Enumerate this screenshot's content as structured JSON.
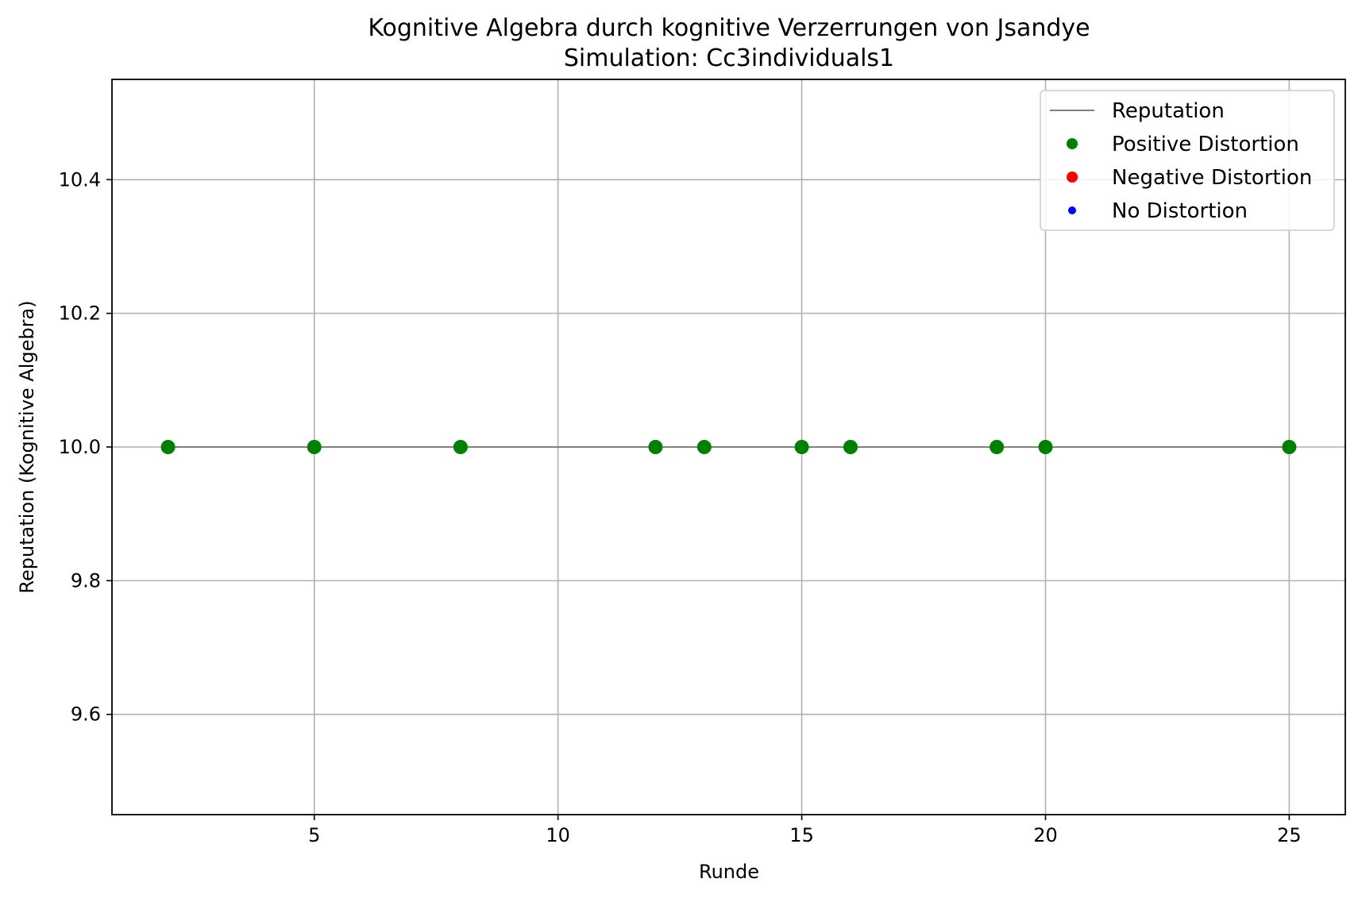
{
  "chart_data": {
    "type": "scatter",
    "title": "Kognitive Algebra durch kognitive Verzerrungen von Jsandye",
    "subtitle": "Simulation: Cc3individuals1",
    "xlabel": "Runde",
    "ylabel": "Reputation (Kognitive Algebra)",
    "xlim": [
      0.85,
      26.15
    ],
    "ylim": [
      9.45,
      10.55
    ],
    "xticks": [
      5,
      10,
      15,
      20,
      25
    ],
    "yticks": [
      9.6,
      9.8,
      10.0,
      10.2,
      10.4
    ],
    "xtick_labels": [
      "5",
      "10",
      "15",
      "20",
      "25"
    ],
    "ytick_labels": [
      "9.6",
      "9.8",
      "10.0",
      "10.2",
      "10.4"
    ],
    "grid": true,
    "legend_position": "top-right",
    "series": [
      {
        "name": "Reputation",
        "kind": "line",
        "color": "#808080",
        "x": [
          2,
          5,
          8,
          12,
          13,
          15,
          16,
          19,
          20,
          25
        ],
        "y": [
          10,
          10,
          10,
          10,
          10,
          10,
          10,
          10,
          10,
          10
        ]
      },
      {
        "name": "Positive Distortion",
        "kind": "points",
        "color": "#008000",
        "x": [
          2,
          5,
          8,
          12,
          13,
          15,
          16,
          19,
          20,
          25
        ],
        "y": [
          10,
          10,
          10,
          10,
          10,
          10,
          10,
          10,
          10,
          10
        ]
      },
      {
        "name": "Negative Distortion",
        "kind": "points",
        "color": "#ff0000",
        "x": [],
        "y": []
      },
      {
        "name": "No Distortion",
        "kind": "points",
        "color": "#0000ff",
        "x": [],
        "y": []
      }
    ]
  }
}
